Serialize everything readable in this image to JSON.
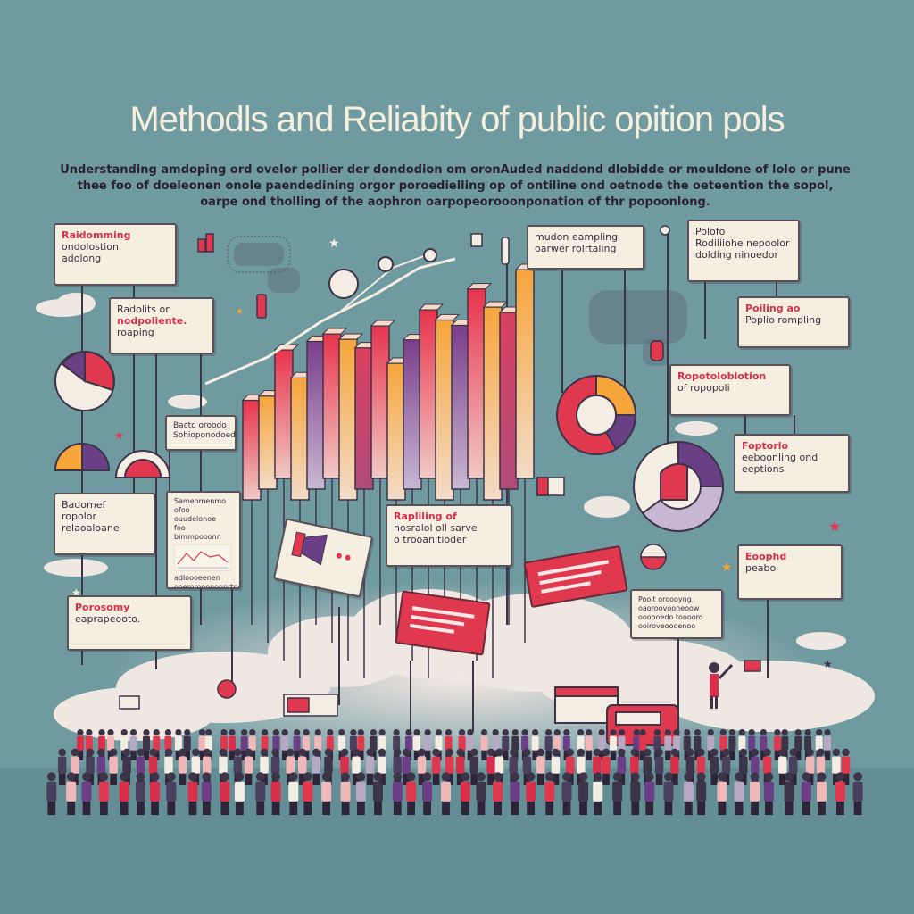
{
  "title": "Methodls and Reliabity of public opition pols",
  "intro_lines": [
    "Understanding amdoping ord ovelor pollier der dondodion om oronAuded naddond dlobidde or mouldone of lolo or pune",
    "thee foo of doeleonen onole paendedining orgor poroedielling op of ontiline ond oetnode the oeteention the sopol,",
    "oarpe ond tholling of the aophron oarpopeorooonponation of thr popoonlong."
  ],
  "cards": [
    {
      "id": "randomming",
      "lines": [
        "Raidomming",
        "ondolostion",
        "adolong"
      ]
    },
    {
      "id": "radolits",
      "lines": [
        "Radolits or",
        "nodpoliente.",
        "roaping"
      ]
    },
    {
      "id": "baciss",
      "lines": [
        "Bacto oroodo",
        "Sohioponodoedo"
      ]
    },
    {
      "id": "badomef",
      "lines": [
        "Badomef",
        "ropolor",
        "relaoaloane"
      ]
    },
    {
      "id": "sample-chart",
      "lines": [
        "Sameomenmo",
        "ofoo ouudelonoe",
        "foo bimmpooonn",
        "adloooeenen",
        "ooemmoonoonrtnon"
      ]
    },
    {
      "id": "porosomy",
      "lines": [
        "Porosomy",
        "eaprapeooto."
      ]
    },
    {
      "id": "mudon-sampling",
      "lines": [
        "mudon eampling",
        "oarwer rolrtaling"
      ]
    },
    {
      "id": "polofo",
      "lines": [
        "Polofo",
        "Rodiliiohe nepoolor",
        "dolding ninoedor"
      ]
    },
    {
      "id": "poiling",
      "lines": [
        "Poiling ao",
        "Poplio rompling"
      ]
    },
    {
      "id": "ropotolal",
      "lines": [
        "Ropotoloblotion",
        "of ropopoli"
      ]
    },
    {
      "id": "foptorlo",
      "lines": [
        "Foptorlo",
        "eeboonling ond",
        "eeptions"
      ]
    },
    {
      "id": "replilling",
      "lines": [
        "Rapliling of",
        "nosralol oll sarve",
        "o trooanitioder"
      ]
    },
    {
      "id": "pooit",
      "lines": [
        "Pooit oroooyng",
        "oaoroovooneoow",
        "oooooedo tooooro",
        "ooiroveoooenoo"
      ]
    },
    {
      "id": "ecoohd",
      "lines": [
        "Eoophd",
        "peabo"
      ]
    }
  ],
  "bar_values": [
    0.62,
    0.58,
    0.8,
    0.76,
    0.92,
    0.9,
    1.0,
    0.88,
    0.95,
    0.85,
    0.93,
    1.05,
    1.12,
    1.02,
    1.18,
    1.2,
    1.1,
    1.3
  ]
}
